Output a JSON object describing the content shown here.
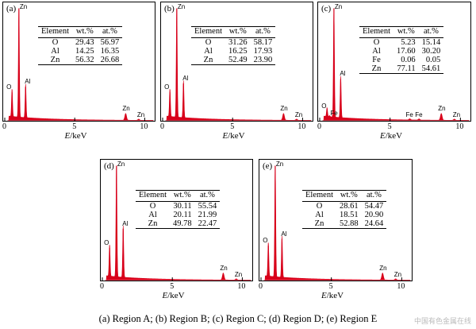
{
  "caption": "(a) Region A; (b) Region B; (c) Region C; (d) Region D; (e) Region E",
  "watermark": "中国有色金属在线",
  "colors": {
    "spectrum": "#d8001a"
  },
  "chart_data": [
    {
      "type": "area",
      "panel_label": "(a)",
      "xlabel": "E/keV",
      "xlim": [
        0,
        10.6
      ],
      "xticks": [
        "0",
        "5",
        "10"
      ],
      "peaks": [
        {
          "label": "O",
          "x": 0.52,
          "h": 0.25
        },
        {
          "label": "Zn",
          "x": 1.01,
          "h": 1.0
        },
        {
          "label": "Al",
          "x": 1.49,
          "h": 0.3
        },
        {
          "label": "Zn",
          "x": 8.64,
          "h": 0.06
        },
        {
          "label": "Zn",
          "x": 9.57,
          "h": 0.01
        }
      ],
      "table": {
        "headers": [
          "Element",
          "wt.%",
          "at.%"
        ],
        "rows": [
          [
            "O",
            "29.43",
            "56.97"
          ],
          [
            "Al",
            "14.25",
            "16.35"
          ],
          [
            "Zn",
            "56.32",
            "26.68"
          ]
        ]
      }
    },
    {
      "type": "area",
      "panel_label": "(b)",
      "xlabel": "E/keV",
      "xlim": [
        0,
        10.6
      ],
      "xticks": [
        "0",
        "5",
        "10"
      ],
      "peaks": [
        {
          "label": "O",
          "x": 0.52,
          "h": 0.25
        },
        {
          "label": "Zn",
          "x": 1.01,
          "h": 1.0
        },
        {
          "label": "Al",
          "x": 1.49,
          "h": 0.33
        },
        {
          "label": "Zn",
          "x": 8.64,
          "h": 0.06
        },
        {
          "label": "Zn",
          "x": 9.57,
          "h": 0.01
        }
      ],
      "table": {
        "headers": [
          "Element",
          "wt.%",
          "at.%"
        ],
        "rows": [
          [
            "O",
            "31.26",
            "58.17"
          ],
          [
            "Al",
            "16.25",
            "17.93"
          ],
          [
            "Zn",
            "52.49",
            "23.90"
          ]
        ]
      }
    },
    {
      "type": "area",
      "panel_label": "(c)",
      "xlabel": "E/keV",
      "xlim": [
        0,
        10.6
      ],
      "xticks": [
        "0",
        "5",
        "10"
      ],
      "peaks": [
        {
          "label": "O",
          "x": 0.52,
          "h": 0.08
        },
        {
          "label": "Fe",
          "x": 0.7,
          "h": 0.01
        },
        {
          "label": "Zn",
          "x": 1.01,
          "h": 1.0
        },
        {
          "label": "Al",
          "x": 1.49,
          "h": 0.37
        },
        {
          "label": "Fe",
          "x": 6.4,
          "h": 0.01
        },
        {
          "label": "Fe",
          "x": 7.06,
          "h": 0.01
        },
        {
          "label": "Zn",
          "x": 8.64,
          "h": 0.06
        },
        {
          "label": "Zn",
          "x": 9.57,
          "h": 0.01
        }
      ],
      "table": {
        "headers": [
          "Element",
          "wt.%",
          "at.%"
        ],
        "rows": [
          [
            "O",
            "5.23",
            "15.14"
          ],
          [
            "Al",
            "17.60",
            "30.20"
          ],
          [
            "Fe",
            "0.06",
            "0.05"
          ],
          [
            "Zn",
            "77.11",
            "54.61"
          ]
        ]
      }
    },
    {
      "type": "area",
      "panel_label": "(d)",
      "xlabel": "E/keV",
      "xlim": [
        0,
        10.6
      ],
      "xticks": [
        "0",
        "5",
        "10"
      ],
      "peaks": [
        {
          "label": "O",
          "x": 0.52,
          "h": 0.28
        },
        {
          "label": "Zn",
          "x": 1.01,
          "h": 1.0
        },
        {
          "label": "Al",
          "x": 1.49,
          "h": 0.45
        },
        {
          "label": "Zn",
          "x": 8.64,
          "h": 0.06
        },
        {
          "label": "Zn",
          "x": 9.57,
          "h": 0.01
        }
      ],
      "table": {
        "headers": [
          "Element",
          "wt.%",
          "at.%"
        ],
        "rows": [
          [
            "O",
            "30.11",
            "55.54"
          ],
          [
            "Al",
            "20.11",
            "21.99"
          ],
          [
            "Zn",
            "49.78",
            "22.47"
          ]
        ]
      }
    },
    {
      "type": "area",
      "panel_label": "(e)",
      "xlabel": "E/keV",
      "xlim": [
        0,
        10.6
      ],
      "xticks": [
        "0",
        "5",
        "10"
      ],
      "peaks": [
        {
          "label": "O",
          "x": 0.52,
          "h": 0.3
        },
        {
          "label": "Zn",
          "x": 1.01,
          "h": 1.0
        },
        {
          "label": "Al",
          "x": 1.49,
          "h": 0.36
        },
        {
          "label": "Zn",
          "x": 8.64,
          "h": 0.06
        },
        {
          "label": "Zn",
          "x": 9.57,
          "h": 0.01
        }
      ],
      "table": {
        "headers": [
          "Element",
          "wt.%",
          "at.%"
        ],
        "rows": [
          [
            "O",
            "28.61",
            "54.47"
          ],
          [
            "Al",
            "18.51",
            "20.90"
          ],
          [
            "Zn",
            "52.88",
            "24.64"
          ]
        ]
      }
    }
  ]
}
